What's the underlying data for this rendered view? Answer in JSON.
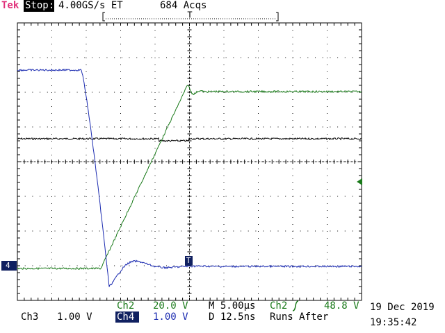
{
  "header": {
    "brand": "Tek",
    "state": "Stop:",
    "rate": "4.00GS/s ET",
    "acqs": "684 Acqs"
  },
  "footer": {
    "ch2_label": "Ch2",
    "ch2_scale": "20.0 V",
    "timebase": "M 5.00µs",
    "trigger_source": "Ch2",
    "trigger_level": "48.8 V",
    "ch3_label": "Ch3",
    "ch3_scale": "1.00 V",
    "ch4_label": "Ch4",
    "ch4_scale": "1.00 V",
    "delay": "D 12.5ns",
    "mode": "Runs After",
    "date": "19 Dec 2019",
    "time": "19:35:42"
  },
  "markers": {
    "ch4": "4",
    "trigger": "T"
  }
}
